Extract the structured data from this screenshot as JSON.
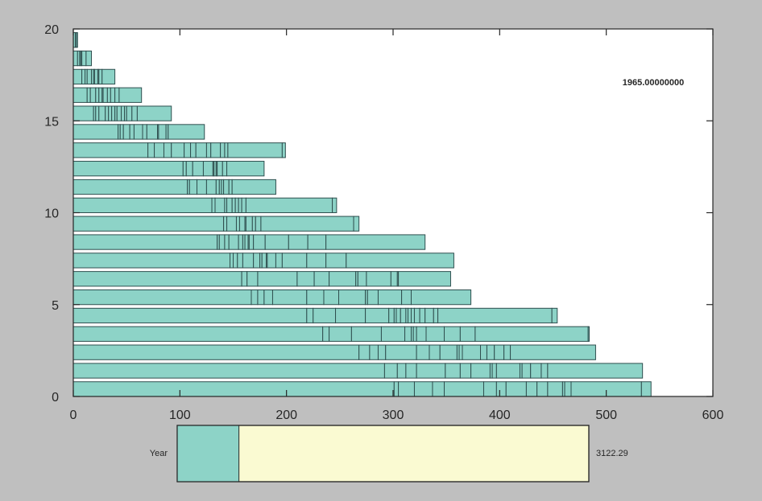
{
  "chart_data": {
    "type": "bar",
    "orientation": "horizontal-stacked",
    "title": "",
    "xlabel": "",
    "ylabel": "",
    "xlim": [
      0,
      600
    ],
    "ylim": [
      0,
      20
    ],
    "xticks": [
      "0",
      "100",
      "200",
      "300",
      "400",
      "500",
      "600"
    ],
    "yticks": [
      "0",
      "5",
      "10",
      "15",
      "20"
    ],
    "grid": false,
    "bar_color": "#8dd3c7",
    "annotation": "1965.00000000",
    "rows": [
      {
        "y": 0,
        "segment_ends": [
          301,
          305,
          320,
          337,
          348,
          385,
          397,
          406,
          425,
          435,
          445,
          459,
          461,
          467,
          533,
          542
        ]
      },
      {
        "y": 1,
        "segment_ends": [
          292,
          304,
          312,
          322,
          349,
          363,
          373,
          391,
          393,
          397,
          419,
          421,
          429,
          439,
          445,
          534
        ]
      },
      {
        "y": 2,
        "segment_ends": [
          268,
          278,
          286,
          293,
          322,
          334,
          344,
          360,
          362,
          365,
          382,
          388,
          395,
          404,
          410,
          490
        ]
      },
      {
        "y": 3,
        "segment_ends": [
          234,
          240,
          261,
          289,
          311,
          317,
          319,
          322,
          331,
          348,
          363,
          377,
          483,
          484
        ]
      },
      {
        "y": 4,
        "segment_ends": [
          219,
          225,
          246,
          274,
          296,
          301,
          303,
          307,
          312,
          314,
          317,
          320,
          325,
          330,
          338,
          342,
          449,
          454
        ]
      },
      {
        "y": 5,
        "segment_ends": [
          167,
          173,
          179,
          187,
          219,
          235,
          249,
          274,
          276,
          286,
          308,
          317,
          373
        ]
      },
      {
        "y": 6,
        "segment_ends": [
          158,
          163,
          173,
          210,
          226,
          240,
          265,
          267,
          275,
          298,
          304,
          305,
          354
        ]
      },
      {
        "y": 7,
        "segment_ends": [
          147,
          150,
          154,
          159,
          169,
          175,
          177,
          181,
          182,
          190,
          196,
          219,
          237,
          256,
          357
        ]
      },
      {
        "y": 8,
        "segment_ends": [
          135,
          137,
          142,
          146,
          155,
          159,
          161,
          164,
          165,
          169,
          180,
          202,
          220,
          237,
          330
        ]
      },
      {
        "y": 9,
        "segment_ends": [
          141,
          144,
          153,
          156,
          161,
          162,
          168,
          171,
          176,
          263,
          268
        ]
      },
      {
        "y": 10,
        "segment_ends": [
          130,
          133,
          142,
          144,
          149,
          152,
          155,
          158,
          162,
          243,
          247
        ]
      },
      {
        "y": 11,
        "segment_ends": [
          107,
          109,
          116,
          125,
          134,
          137,
          139,
          141,
          146,
          149,
          190
        ]
      },
      {
        "y": 12,
        "segment_ends": [
          103,
          106,
          112,
          122,
          131,
          132,
          134,
          135,
          140,
          144,
          179
        ]
      },
      {
        "y": 13,
        "segment_ends": [
          70,
          76,
          85,
          92,
          104,
          110,
          115,
          125,
          129,
          138,
          142,
          145,
          196,
          199
        ]
      },
      {
        "y": 14,
        "segment_ends": [
          42,
          44,
          47,
          53,
          57,
          65,
          69,
          79,
          80,
          87,
          89,
          123
        ]
      },
      {
        "y": 15,
        "segment_ends": [
          19,
          21,
          24,
          30,
          33,
          36,
          39,
          41,
          45,
          48,
          50,
          55,
          60,
          92
        ]
      },
      {
        "y": 16,
        "segment_ends": [
          13,
          16,
          21,
          24,
          27,
          28,
          32,
          35,
          39,
          43,
          64
        ]
      },
      {
        "y": 17,
        "segment_ends": [
          8,
          11,
          13,
          17,
          19,
          20,
          23,
          24,
          27,
          39
        ]
      },
      {
        "y": 18,
        "segment_ends": [
          4,
          6,
          7,
          8,
          12,
          17
        ]
      },
      {
        "y": 19,
        "segment_ends": [
          2,
          3,
          4
        ]
      }
    ]
  },
  "slider": {
    "label": "Year",
    "value_text": "3122.29",
    "fill_fraction": 0.15,
    "fill_color": "#8dd3c7",
    "track_color": "#fafad2"
  }
}
